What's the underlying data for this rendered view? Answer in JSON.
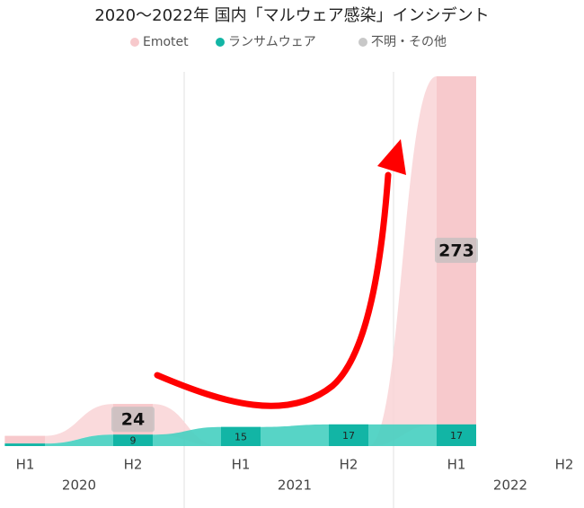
{
  "chart_data": {
    "type": "ribbon",
    "title": "2020～2022年 国内「マルウェア感染」インシデント",
    "categories": [
      "H1",
      "H2",
      "H1",
      "H2",
      "H1",
      "H2"
    ],
    "groups": [
      {
        "label": "2020",
        "span": 2
      },
      {
        "label": "2021",
        "span": 2
      },
      {
        "label": "2022",
        "span": 2
      }
    ],
    "series": [
      {
        "name": "Emotet",
        "color": "#f7c9cc",
        "values": [
          6,
          24,
          0,
          0,
          273,
          null
        ],
        "value_labels": [
          null,
          "24",
          null,
          null,
          "273",
          null
        ]
      },
      {
        "name": "ランサムウェア",
        "color": "#12b5a5",
        "values": [
          2,
          9,
          15,
          17,
          17,
          null
        ],
        "value_labels": [
          null,
          "9",
          "15",
          "17",
          "17",
          null
        ]
      },
      {
        "name": "不明・その他",
        "color": "#c8c8c8",
        "values": [
          0,
          0,
          0,
          0,
          0,
          null
        ],
        "value_labels": [
          null,
          null,
          null,
          null,
          null,
          null
        ]
      }
    ],
    "ylim": [
      0,
      290
    ]
  }
}
